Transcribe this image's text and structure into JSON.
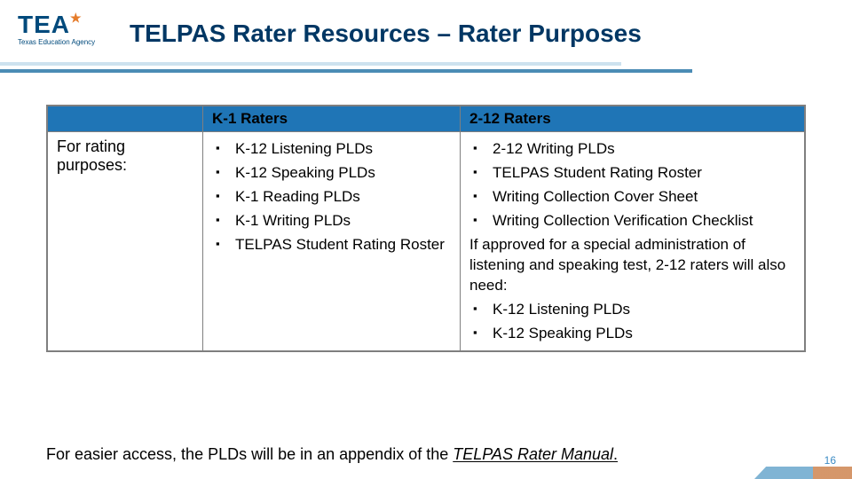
{
  "logo": {
    "text": "TEA",
    "tagline": "Texas Education Agency",
    "star_glyph": "★"
  },
  "title": "TELPAS Rater Resources – Rater Purposes",
  "table": {
    "headers": {
      "blank": "",
      "col1": "K-1 Raters",
      "col2": "2-12 Raters"
    },
    "row_label": "For rating purposes:",
    "col1_items": [
      "K-12 Listening PLDs",
      "K-12 Speaking PLDs",
      "K-1 Reading PLDs",
      "K-1 Writing PLDs",
      "TELPAS Student Rating Roster"
    ],
    "col2_items_a": [
      "2-12 Writing PLDs",
      "TELPAS Student Rating Roster",
      "Writing Collection Cover Sheet",
      "Writing Collection Verification Checklist"
    ],
    "col2_note": "If approved for a special administration of listening and speaking test, 2-12 raters will also need:",
    "col2_items_b": [
      "K-12 Listening PLDs",
      "K-12 Speaking PLDs"
    ]
  },
  "footnote": {
    "pre": "For easier access, the PLDs will be in an appendix of the ",
    "ital": "TELPAS Rater Manual",
    "post": "."
  },
  "page_number": "16",
  "style": {
    "type": "table",
    "slide_size": [
      960,
      540
    ],
    "title_color": "#003764",
    "title_fontsize": 28,
    "header_bg": "#1f75b6",
    "border_color": "#7f7f7f",
    "body_fontsize": 17,
    "bullet_glyph": "▪",
    "underline_colors": [
      "#cde2ef",
      "#4b8cb5"
    ],
    "pagenum_color": "#3b8bc4",
    "logo_colors": {
      "text": "#004a7c",
      "star": "#e57c2b"
    },
    "corner_colors": [
      "#4994c2",
      "#c36a2b"
    ]
  }
}
